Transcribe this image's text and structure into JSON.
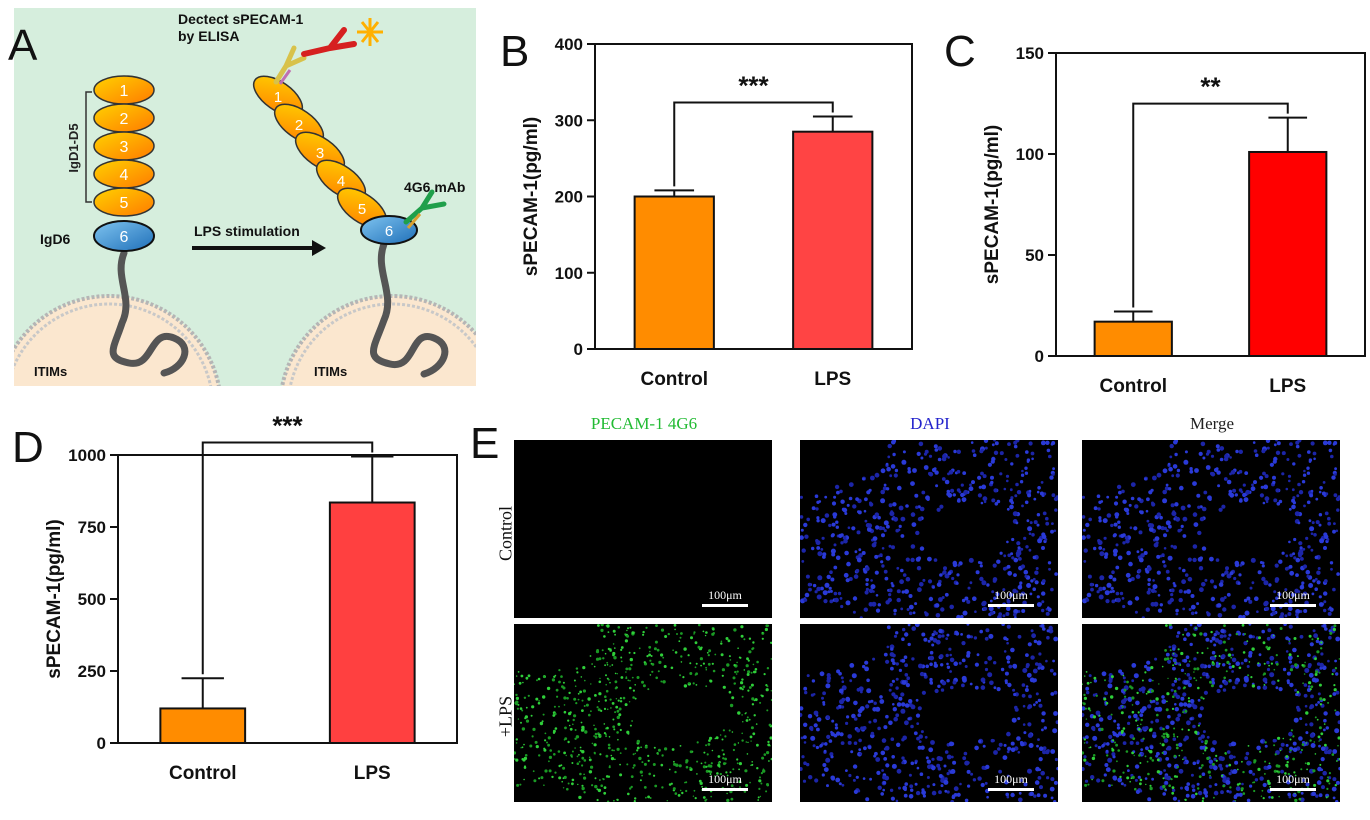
{
  "panel_letters": [
    "A",
    "B",
    "C",
    "D",
    "E"
  ],
  "schematic": {
    "elisa_label_line1": "Dectect sPECAM-1",
    "elisa_label_line2": "by ELISA",
    "igd1_d5_label": "IgD1-D5",
    "igd6_label": "IgD6",
    "mab_label": "4G6 mAb",
    "stimulation_label": "LPS stimulation",
    "itims_label": "ITIMs",
    "domains": [
      "1",
      "2",
      "3",
      "4",
      "5",
      "6"
    ]
  },
  "chart_data": [
    {
      "panel": "B",
      "type": "bar",
      "categories": [
        "Control",
        "LPS"
      ],
      "values": [
        200,
        285
      ],
      "errors": [
        8,
        20
      ],
      "colors": [
        "#ff8c00",
        "#ff4444"
      ],
      "ylabel": "sPECAM-1(pg/ml)",
      "ylim": [
        0,
        400
      ],
      "yticks": [
        "0",
        "100",
        "200",
        "300",
        "400"
      ],
      "significance": "***"
    },
    {
      "panel": "C",
      "type": "bar",
      "categories": [
        "Control",
        "LPS"
      ],
      "values": [
        17,
        101
      ],
      "errors": [
        5,
        17
      ],
      "colors": [
        "#ff8c00",
        "#ff0000"
      ],
      "ylabel": "sPECAM-1(pg/ml)",
      "ylim": [
        0,
        150
      ],
      "yticks": [
        "0",
        "50",
        "100",
        "150"
      ],
      "significance": "**"
    },
    {
      "panel": "D",
      "type": "bar",
      "categories": [
        "Control",
        "LPS"
      ],
      "values": [
        120,
        835
      ],
      "errors": [
        105,
        160
      ],
      "colors": [
        "#ff8c00",
        "#ff4040"
      ],
      "ylabel": "sPECAM-1(pg/ml)",
      "ylim": [
        0,
        1000
      ],
      "yticks": [
        "0",
        "250",
        "500",
        "750",
        "1000"
      ],
      "significance": "***"
    }
  ],
  "microscopy": {
    "columns": [
      "PECAM-1 4G6",
      "DAPI",
      "Merge"
    ],
    "column_colors": [
      "#22bb33",
      "#2222cc",
      "#222222"
    ],
    "rows": [
      "Control",
      "+LPS"
    ],
    "scale_label": "100μm"
  }
}
